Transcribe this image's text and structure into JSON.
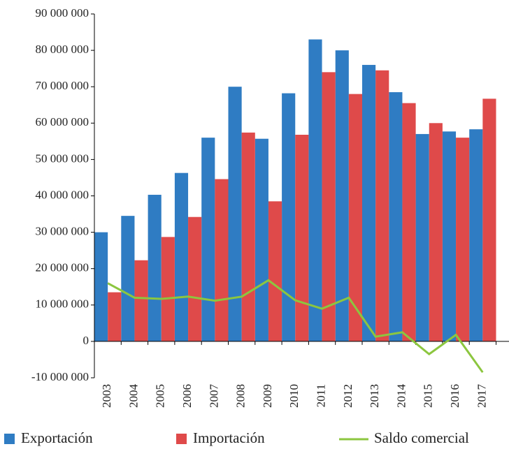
{
  "chart_data": {
    "type": "bar",
    "categories": [
      "2003",
      "2004",
      "2005",
      "2006",
      "2007",
      "2008",
      "2009",
      "2010",
      "2011",
      "2012",
      "2013",
      "2014",
      "2015",
      "2016",
      "2017"
    ],
    "series": [
      {
        "name": "Exportación",
        "type": "bar",
        "color": "#2f7cc3",
        "values": [
          30000000,
          34500000,
          40300000,
          46300000,
          56000000,
          70000000,
          55700000,
          68200000,
          83000000,
          80000000,
          76000000,
          68500000,
          57000000,
          57700000,
          58300000
        ]
      },
      {
        "name": "Importación",
        "type": "bar",
        "color": "#df4a4a",
        "values": [
          13500000,
          22300000,
          28700000,
          34200000,
          44600000,
          57400000,
          38500000,
          56800000,
          74000000,
          68000000,
          74500000,
          65500000,
          60000000,
          56000000,
          66700000
        ]
      },
      {
        "name": "Saldo comercial",
        "type": "line",
        "color": "#8cc63f",
        "values": [
          16000000,
          12000000,
          11700000,
          12300000,
          11200000,
          12300000,
          16800000,
          11300000,
          9000000,
          12000000,
          1300000,
          2500000,
          -3500000,
          1800000,
          -8500000
        ]
      }
    ],
    "ylim": [
      -10000000,
      90000000
    ],
    "yticks": [
      {
        "value": -10000000,
        "label": "-10 000 000"
      },
      0,
      {
        "value": 10000000,
        "label": "10 000 000"
      },
      {
        "value": 20000000,
        "label": "20 000 000"
      },
      {
        "value": 30000000,
        "label": "30 000 000"
      },
      {
        "value": 40000000,
        "label": "40 000 000"
      },
      {
        "value": 50000000,
        "label": "50 000 000"
      },
      {
        "value": 60000000,
        "label": "60 000 000"
      },
      {
        "value": 70000000,
        "label": "70 000 000"
      },
      {
        "value": 80000000,
        "label": "80 000 000"
      },
      {
        "value": 90000000,
        "label": "90 000 000"
      }
    ],
    "legend": "bottom"
  }
}
